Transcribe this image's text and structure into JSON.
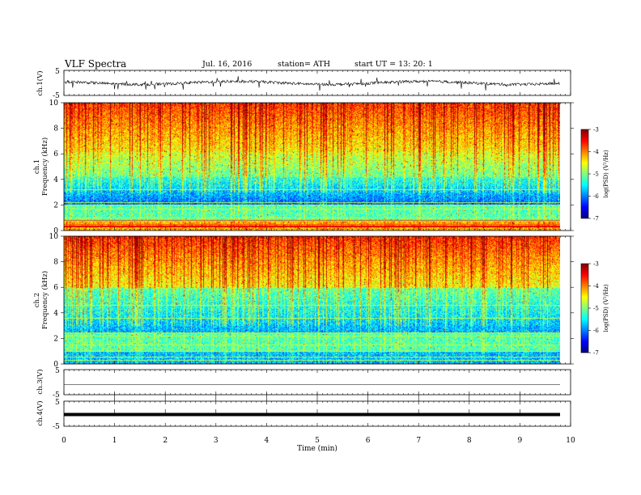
{
  "header": {
    "title": "VLF  Spectra",
    "date": "Jul.  16,  2016",
    "station": "station= ATH",
    "start": "start  UT  =    13: 20: 1"
  },
  "colors": {
    "colormap": [
      "#00007f",
      "#0000ff",
      "#007fff",
      "#00ffff",
      "#7fff7f",
      "#ffff00",
      "#ff7f00",
      "#ff0000",
      "#7f0000"
    ],
    "waveform": "#000000"
  },
  "chart_data": [
    {
      "type": "line",
      "panel": "ch1-waveform",
      "ylabel": "ch.1(V)",
      "ylim": [
        -5,
        5
      ],
      "yticks": [
        "5",
        "-5"
      ],
      "xlim": [
        0,
        10
      ],
      "baseline": 0,
      "amplitude_note_value": 2
    },
    {
      "type": "heatmap",
      "panel": "ch1-spectrogram",
      "ylabel": "ch.1\nFrequency  (kHz)",
      "ylabel_lines": [
        "ch.1",
        "Frequency  (kHz)"
      ],
      "ylim": [
        0,
        10
      ],
      "yticks": [
        "0",
        "2",
        "4",
        "6",
        "8",
        "10"
      ],
      "xlim": [
        0,
        10
      ],
      "data_end": 9.8,
      "colorbar": {
        "label": "log(PSD) (V²/Hz)",
        "range": [
          -7,
          -3
        ],
        "ticks": [
          "-3",
          "-4",
          "-5",
          "-6",
          "-7"
        ]
      }
    },
    {
      "type": "heatmap",
      "panel": "ch2-spectrogram",
      "ylabel_lines": [
        "ch.2",
        "Frequency  (kHz)"
      ],
      "ylim": [
        0,
        10
      ],
      "yticks": [
        "0",
        "2",
        "4",
        "6",
        "8",
        "10"
      ],
      "xlim": [
        0,
        10
      ],
      "data_end": 9.8,
      "colorbar": {
        "label": "log(PSD) (V²/Hz)",
        "range": [
          -7,
          -3
        ],
        "ticks": [
          "-3",
          "-4",
          "-5",
          "-6",
          "-7"
        ]
      }
    },
    {
      "type": "line",
      "panel": "ch3-waveform",
      "ylabel": "ch.3(V)",
      "ylim": [
        -5,
        5
      ],
      "yticks": [
        "5",
        "-5"
      ],
      "level": 0
    },
    {
      "type": "line",
      "panel": "ch4-waveform",
      "ylabel": "ch.4(V)",
      "ylim": [
        -5,
        5
      ],
      "yticks": [
        "5",
        "-5"
      ],
      "level": 0
    }
  ],
  "xaxis": {
    "label": "Time  (min)",
    "ticks": [
      "0",
      "1",
      "2",
      "3",
      "4",
      "5",
      "6",
      "7",
      "8",
      "9",
      "10"
    ],
    "range": [
      0,
      10
    ]
  }
}
